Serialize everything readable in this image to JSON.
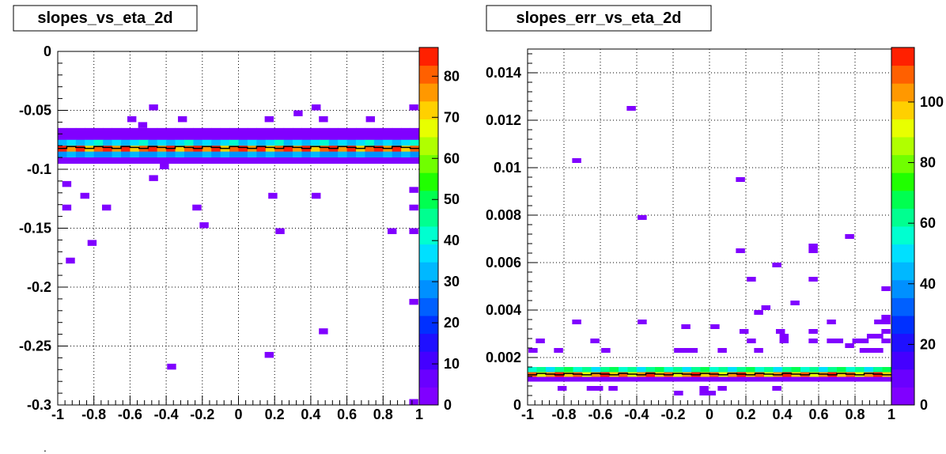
{
  "footer_mark": ".",
  "palette": [
    "#8000ff",
    "#6a00ff",
    "#4400ff",
    "#1f10ff",
    "#0030ff",
    "#0060ff",
    "#0090ff",
    "#00b8ff",
    "#00e0ff",
    "#00ffd0",
    "#00ff90",
    "#00ff50",
    "#20ff00",
    "#70ff00",
    "#b0ff00",
    "#e8ff00",
    "#ffd000",
    "#ff9800",
    "#ff6000",
    "#ff2000"
  ],
  "chart_data": [
    {
      "type": "heatmap",
      "title": "slopes_vs_eta_2d",
      "xlim": [
        -1,
        1
      ],
      "ylim": [
        -0.3,
        0
      ],
      "xticks": [
        "-1",
        "-0.8",
        "-0.6",
        "-0.4",
        "-0.2",
        "0",
        "0.2",
        "0.4",
        "0.6",
        "0.8",
        "1"
      ],
      "yticks": [
        "0",
        "-0.05",
        "-0.1",
        "-0.15",
        "-0.2",
        "-0.25",
        "-0.3"
      ],
      "zlim": [
        0,
        87
      ],
      "zticks": [
        "0",
        "10",
        "20",
        "30",
        "40",
        "50",
        "60",
        "70",
        "80"
      ],
      "grid": true,
      "nbins_x": 40,
      "bin_height": 0.005,
      "band": {
        "profile_y": -0.0815,
        "rows": [
          {
            "y": -0.0675,
            "value": 2
          },
          {
            "y": -0.0725,
            "value": 4
          },
          {
            "y": -0.0775,
            "value": 35
          },
          {
            "y": -0.0825,
            "value": 80
          },
          {
            "y": -0.0875,
            "value": 30
          },
          {
            "y": -0.0925,
            "value": 3
          }
        ]
      },
      "points": [
        {
          "x": -0.95,
          "y": -0.1125,
          "value": 1
        },
        {
          "x": -0.85,
          "y": -0.1225,
          "value": 1
        },
        {
          "x": -0.95,
          "y": -0.1325,
          "value": 1
        },
        {
          "x": -0.73,
          "y": -0.1325,
          "value": 1
        },
        {
          "x": -0.93,
          "y": -0.1775,
          "value": 1
        },
        {
          "x": -0.81,
          "y": -0.1625,
          "value": 1
        },
        {
          "x": -0.47,
          "y": -0.1075,
          "value": 1
        },
        {
          "x": -0.41,
          "y": -0.0975,
          "value": 1
        },
        {
          "x": -0.47,
          "y": -0.0475,
          "value": 1
        },
        {
          "x": -0.37,
          "y": -0.2675,
          "value": 1
        },
        {
          "x": -0.23,
          "y": -0.1325,
          "value": 1
        },
        {
          "x": -0.19,
          "y": -0.1475,
          "value": 1
        },
        {
          "x": 0.17,
          "y": -0.2575,
          "value": 1
        },
        {
          "x": 0.19,
          "y": -0.1225,
          "value": 1
        },
        {
          "x": 0.23,
          "y": -0.1525,
          "value": 1
        },
        {
          "x": 0.43,
          "y": -0.1225,
          "value": 1
        },
        {
          "x": 0.47,
          "y": -0.2375,
          "value": 1
        },
        {
          "x": 0.85,
          "y": -0.1525,
          "value": 1
        },
        {
          "x": 0.97,
          "y": -0.1525,
          "value": 1
        },
        {
          "x": 0.97,
          "y": -0.1325,
          "value": 1
        },
        {
          "x": 0.97,
          "y": -0.2125,
          "value": 1
        },
        {
          "x": 0.97,
          "y": -0.2975,
          "value": 1
        },
        {
          "x": 0.97,
          "y": -0.1175,
          "value": 1
        },
        {
          "x": 0.97,
          "y": -0.0475,
          "value": 1
        },
        {
          "x": 0.43,
          "y": -0.0475,
          "value": 1
        },
        {
          "x": 0.33,
          "y": -0.0525,
          "value": 1
        },
        {
          "x": 0.47,
          "y": -0.0575,
          "value": 1
        },
        {
          "x": 0.73,
          "y": -0.0575,
          "value": 1
        },
        {
          "x": -0.59,
          "y": -0.0575,
          "value": 1
        },
        {
          "x": -0.31,
          "y": -0.0575,
          "value": 1
        },
        {
          "x": 0.17,
          "y": -0.0575,
          "value": 1
        },
        {
          "x": -0.53,
          "y": -0.0625,
          "value": 1
        }
      ]
    },
    {
      "type": "heatmap",
      "title": "slopes_err_vs_eta_2d",
      "xlim": [
        -1,
        1
      ],
      "ylim": [
        0,
        0.015
      ],
      "xticks": [
        "-1",
        "-0.8",
        "-0.6",
        "-0.4",
        "-0.2",
        "0",
        "0.2",
        "0.4",
        "0.6",
        "0.8",
        "1"
      ],
      "yticks": [
        "0",
        "0.002",
        "0.004",
        "0.006",
        "0.008",
        "0.01",
        "0.012",
        "0.014"
      ],
      "zlim": [
        0,
        118
      ],
      "zticks": [
        "0",
        "20",
        "40",
        "60",
        "80",
        "100"
      ],
      "grid": true,
      "nbins_x": 40,
      "bin_height": 0.0002,
      "band": {
        "profile_y": 0.0013,
        "rows": [
          {
            "y": 0.0011,
            "value": 2
          },
          {
            "y": 0.0013,
            "value": 105
          },
          {
            "y": 0.0015,
            "value": 60
          }
        ]
      },
      "points": [
        {
          "x": -0.43,
          "y": 0.0125,
          "value": 1
        },
        {
          "x": -0.73,
          "y": 0.0103,
          "value": 1
        },
        {
          "x": -0.37,
          "y": 0.0079,
          "value": 1
        },
        {
          "x": 0.17,
          "y": 0.0095,
          "value": 1
        },
        {
          "x": 0.17,
          "y": 0.0065,
          "value": 1
        },
        {
          "x": 0.57,
          "y": 0.0067,
          "value": 1
        },
        {
          "x": 0.57,
          "y": 0.0065,
          "value": 1
        },
        {
          "x": 0.77,
          "y": 0.0071,
          "value": 1
        },
        {
          "x": 0.37,
          "y": 0.0059,
          "value": 1
        },
        {
          "x": 0.23,
          "y": 0.0053,
          "value": 1
        },
        {
          "x": 0.57,
          "y": 0.0053,
          "value": 1
        },
        {
          "x": 0.97,
          "y": 0.0049,
          "value": 1
        },
        {
          "x": 0.47,
          "y": 0.0043,
          "value": 1
        },
        {
          "x": 0.31,
          "y": 0.0041,
          "value": 1
        },
        {
          "x": 0.27,
          "y": 0.0039,
          "value": 1
        },
        {
          "x": -0.73,
          "y": 0.0035,
          "value": 1
        },
        {
          "x": -0.37,
          "y": 0.0035,
          "value": 1
        },
        {
          "x": -0.13,
          "y": 0.0033,
          "value": 1
        },
        {
          "x": 0.03,
          "y": 0.0033,
          "value": 1
        },
        {
          "x": 0.67,
          "y": 0.0035,
          "value": 1
        },
        {
          "x": 0.93,
          "y": 0.0035,
          "value": 1
        },
        {
          "x": 0.97,
          "y": 0.0037,
          "value": 1
        },
        {
          "x": 0.97,
          "y": 0.0035,
          "value": 1
        },
        {
          "x": -0.93,
          "y": 0.0027,
          "value": 1
        },
        {
          "x": -0.97,
          "y": 0.0023,
          "value": 1
        },
        {
          "x": -0.83,
          "y": 0.0023,
          "value": 1
        },
        {
          "x": -0.63,
          "y": 0.0027,
          "value": 1
        },
        {
          "x": -0.57,
          "y": 0.0023,
          "value": 1
        },
        {
          "x": -0.17,
          "y": 0.0023,
          "value": 1
        },
        {
          "x": -0.13,
          "y": 0.0023,
          "value": 1
        },
        {
          "x": -0.09,
          "y": 0.0023,
          "value": 1
        },
        {
          "x": 0.07,
          "y": 0.0023,
          "value": 1
        },
        {
          "x": 0.19,
          "y": 0.0031,
          "value": 1
        },
        {
          "x": 0.23,
          "y": 0.0027,
          "value": 1
        },
        {
          "x": 0.27,
          "y": 0.0023,
          "value": 1
        },
        {
          "x": 0.39,
          "y": 0.0031,
          "value": 1
        },
        {
          "x": 0.41,
          "y": 0.0027,
          "value": 1
        },
        {
          "x": 0.41,
          "y": 0.0029,
          "value": 1
        },
        {
          "x": 0.57,
          "y": 0.0031,
          "value": 1
        },
        {
          "x": 0.57,
          "y": 0.0027,
          "value": 1
        },
        {
          "x": 0.67,
          "y": 0.0027,
          "value": 1
        },
        {
          "x": 0.71,
          "y": 0.0027,
          "value": 1
        },
        {
          "x": 0.77,
          "y": 0.0025,
          "value": 1
        },
        {
          "x": 0.81,
          "y": 0.0027,
          "value": 1
        },
        {
          "x": 0.85,
          "y": 0.0027,
          "value": 1
        },
        {
          "x": 0.89,
          "y": 0.0029,
          "value": 1
        },
        {
          "x": 0.93,
          "y": 0.0029,
          "value": 1
        },
        {
          "x": 0.97,
          "y": 0.0031,
          "value": 1
        },
        {
          "x": 0.97,
          "y": 0.0027,
          "value": 1
        },
        {
          "x": 0.93,
          "y": 0.0023,
          "value": 1
        },
        {
          "x": 0.89,
          "y": 0.0023,
          "value": 1
        },
        {
          "x": 0.85,
          "y": 0.0023,
          "value": 1
        },
        {
          "x": -0.81,
          "y": 0.0007,
          "value": 1
        },
        {
          "x": -0.65,
          "y": 0.0007,
          "value": 1
        },
        {
          "x": -0.61,
          "y": 0.0007,
          "value": 1
        },
        {
          "x": -0.53,
          "y": 0.0007,
          "value": 1
        },
        {
          "x": -0.17,
          "y": 0.0005,
          "value": 1
        },
        {
          "x": -0.03,
          "y": 0.0005,
          "value": 1
        },
        {
          "x": 0.01,
          "y": 0.0005,
          "value": 1
        },
        {
          "x": -0.03,
          "y": 0.0007,
          "value": 1
        },
        {
          "x": 0.07,
          "y": 0.0007,
          "value": 1
        },
        {
          "x": 0.37,
          "y": 0.0007,
          "value": 1
        }
      ]
    }
  ]
}
